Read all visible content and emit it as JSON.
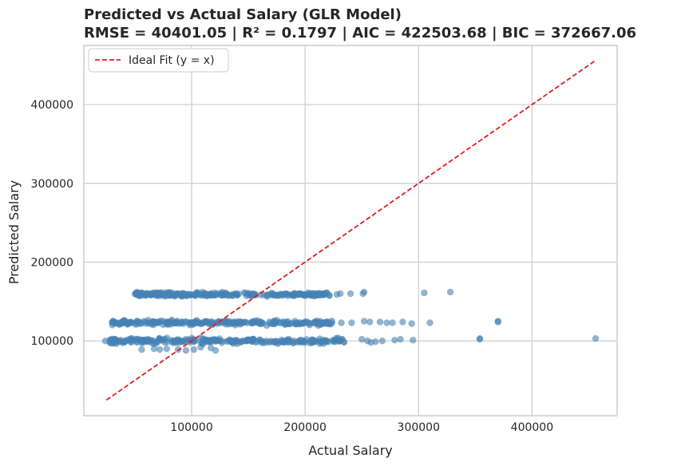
{
  "chart_data": {
    "type": "scatter",
    "title_line1": "Predicted vs Actual Salary (GLR Model)",
    "title_line2": "RMSE = 40401.05 | R² = 0.1797 | AIC = 422503.68 | BIC = 372667.06",
    "xlabel": "Actual Salary",
    "ylabel": "Predicted Salary",
    "xlim": [
      5000,
      475000
    ],
    "ylim": [
      5000,
      475000
    ],
    "xticks": [
      100000,
      200000,
      300000,
      400000
    ],
    "yticks": [
      100000,
      200000,
      300000,
      400000
    ],
    "grid": true,
    "legend": {
      "position": "top-left",
      "label": "Ideal Fit (y = x)"
    },
    "colors": {
      "points": "#4682b4",
      "ideal_line": "#e31a1c",
      "grid": "#cccccc",
      "axis": "#cccccc"
    },
    "ideal_line": {
      "x": [
        25000,
        456000
      ],
      "y": [
        25000,
        456000
      ]
    },
    "clusters": [
      {
        "center_y": 100000,
        "x_range": [
          28000,
          235000
        ],
        "spread": 3500
      },
      {
        "center_y": 123000,
        "x_range": [
          30000,
          225000
        ],
        "spread": 3000
      },
      {
        "center_y": 159000,
        "x_range": [
          50000,
          222000
        ],
        "spread": 2500
      }
    ],
    "points": [
      [
        24000,
        100000
      ],
      [
        56000,
        89000
      ],
      [
        67000,
        90000
      ],
      [
        72000,
        89000
      ],
      [
        78000,
        90000
      ],
      [
        88000,
        89000
      ],
      [
        95000,
        88000
      ],
      [
        102000,
        89000
      ],
      [
        108000,
        92000
      ],
      [
        117000,
        91000
      ],
      [
        121000,
        88000
      ],
      [
        110000,
        96000
      ],
      [
        53000,
        159000
      ],
      [
        51000,
        161000
      ],
      [
        56000,
        161000
      ],
      [
        58000,
        160000
      ],
      [
        66000,
        161000
      ],
      [
        69000,
        160000
      ],
      [
        74000,
        159000
      ],
      [
        232000,
        123000
      ],
      [
        241000,
        123000
      ],
      [
        252000,
        125000
      ],
      [
        257000,
        124000
      ],
      [
        266000,
        124000
      ],
      [
        272000,
        123000
      ],
      [
        277000,
        123000
      ],
      [
        286000,
        124000
      ],
      [
        294000,
        122000
      ],
      [
        310000,
        123000
      ],
      [
        225000,
        100000
      ],
      [
        228000,
        101000
      ],
      [
        234000,
        99000
      ],
      [
        250000,
        102000
      ],
      [
        255000,
        100000
      ],
      [
        258000,
        98000
      ],
      [
        262000,
        99000
      ],
      [
        268000,
        100000
      ],
      [
        279000,
        101000
      ],
      [
        284000,
        102000
      ],
      [
        295000,
        101000
      ],
      [
        228000,
        159000
      ],
      [
        231000,
        160000
      ],
      [
        240000,
        160000
      ],
      [
        251000,
        160000
      ],
      [
        252000,
        162000
      ],
      [
        305000,
        161000
      ],
      [
        328000,
        162000
      ],
      [
        354000,
        103000
      ],
      [
        354000,
        102000
      ],
      [
        370000,
        125000
      ],
      [
        370000,
        124000
      ],
      [
        456000,
        103000
      ]
    ]
  }
}
